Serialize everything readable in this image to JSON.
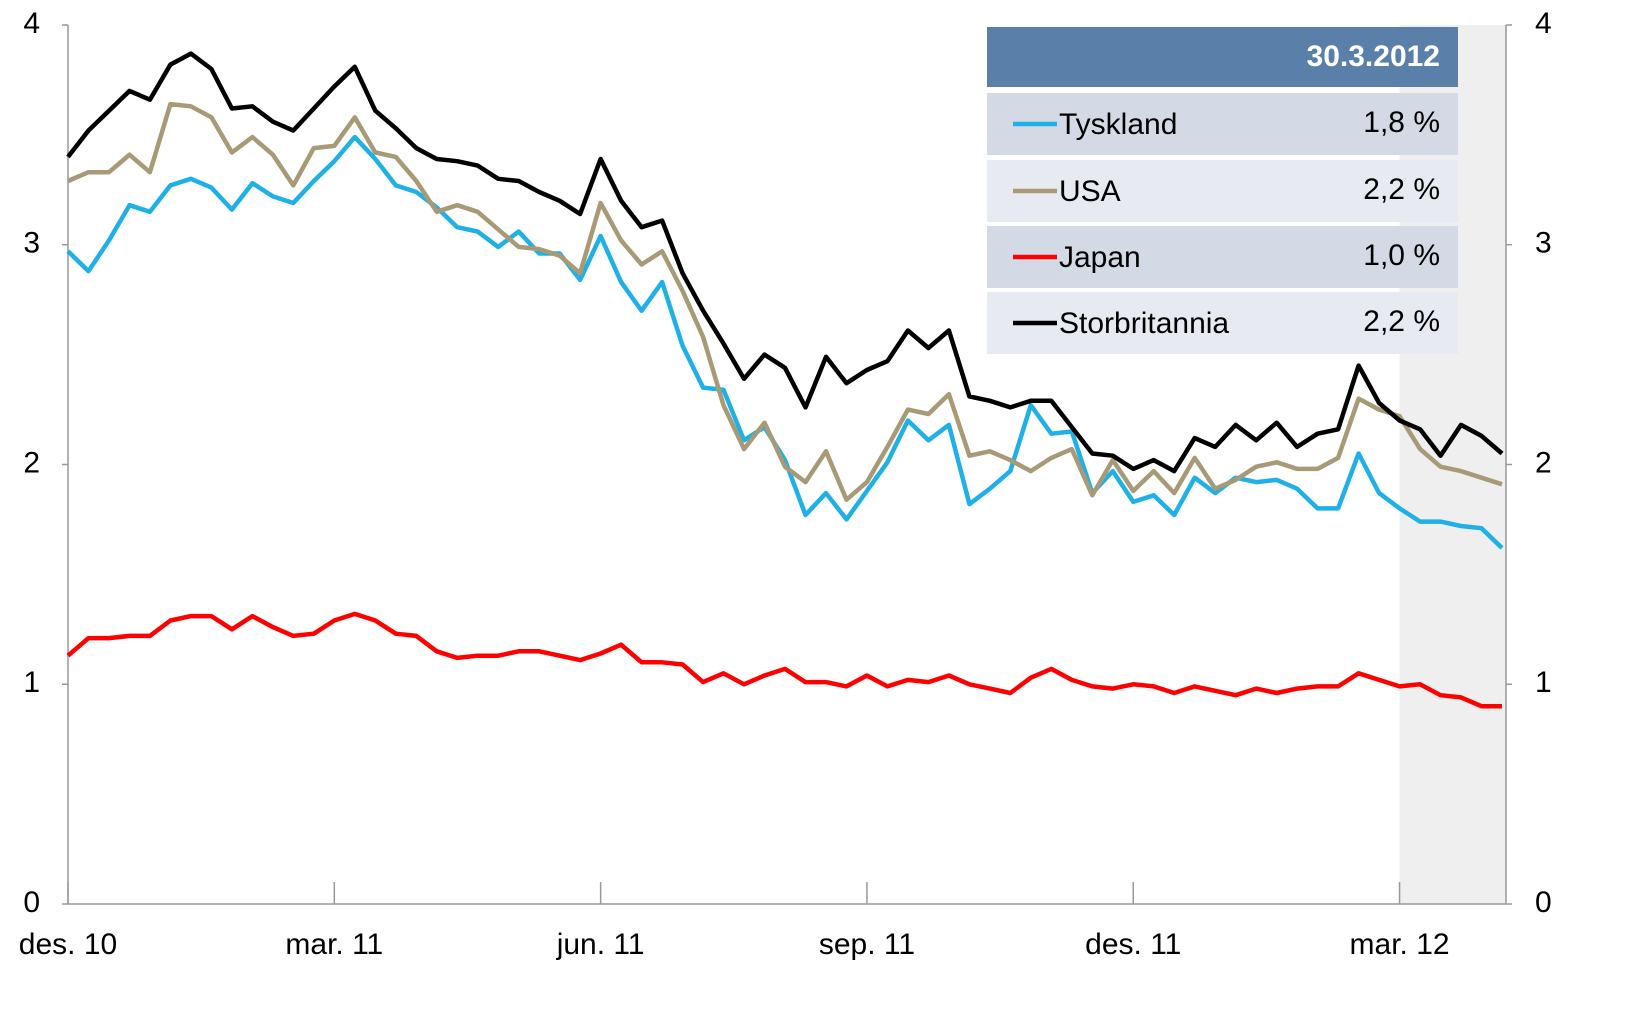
{
  "chart_data": {
    "type": "line",
    "categories": [
      "des. 10",
      null,
      null,
      null,
      null,
      null,
      null,
      null,
      null,
      null,
      null,
      null,
      null,
      "mar. 11",
      null,
      null,
      null,
      null,
      null,
      null,
      null,
      null,
      null,
      null,
      null,
      null,
      "jun. 11",
      null,
      null,
      null,
      null,
      null,
      null,
      null,
      null,
      null,
      null,
      null,
      null,
      "sep. 11",
      null,
      null,
      null,
      null,
      null,
      null,
      null,
      null,
      null,
      null,
      null,
      null,
      "des. 11",
      null,
      null,
      null,
      null,
      null,
      null,
      null,
      null,
      null,
      null,
      null,
      null,
      "mar. 12",
      null,
      null,
      null,
      null,
      null
    ],
    "series": [
      {
        "name": "Tyskland",
        "color": "#1fb0e6",
        "values": [
          2.97,
          2.88,
          3.02,
          3.18,
          3.15,
          3.27,
          3.3,
          3.26,
          3.16,
          3.28,
          3.22,
          3.19,
          3.29,
          3.38,
          3.49,
          3.39,
          3.27,
          3.24,
          3.17,
          3.08,
          3.06,
          2.99,
          3.06,
          2.96,
          2.96,
          2.84,
          3.04,
          2.83,
          2.7,
          2.83,
          2.54,
          2.35,
          2.34,
          2.11,
          2.17,
          2.02,
          1.77,
          1.87,
          1.75,
          1.88,
          2.01,
          2.2,
          2.11,
          2.18,
          1.82,
          1.89,
          1.97,
          2.27,
          2.14,
          2.15,
          1.87,
          1.97,
          1.83,
          1.86,
          1.77,
          1.94,
          1.87,
          1.94,
          1.92,
          1.93,
          1.89,
          1.8,
          1.8,
          2.05,
          1.87,
          1.8,
          1.74,
          1.74,
          1.72,
          1.71,
          1.62
        ]
      },
      {
        "name": "USA",
        "color": "#a89a76",
        "values": [
          3.29,
          3.33,
          3.33,
          3.41,
          3.33,
          3.64,
          3.63,
          3.58,
          3.42,
          3.49,
          3.41,
          3.27,
          3.44,
          3.45,
          3.58,
          3.42,
          3.4,
          3.29,
          3.15,
          3.18,
          3.15,
          3.07,
          2.99,
          2.98,
          2.95,
          2.87,
          3.19,
          3.02,
          2.91,
          2.97,
          2.79,
          2.58,
          2.27,
          2.07,
          2.19,
          1.99,
          1.92,
          2.06,
          1.84,
          1.92,
          2.08,
          2.25,
          2.23,
          2.32,
          2.04,
          2.06,
          2.02,
          1.97,
          2.03,
          2.07,
          1.86,
          2.02,
          1.88,
          1.97,
          1.87,
          2.03,
          1.89,
          1.93,
          1.99,
          2.01,
          1.98,
          1.98,
          2.03,
          2.3,
          2.25,
          2.22,
          2.07,
          1.99,
          1.97,
          1.94,
          1.91
        ]
      },
      {
        "name": "Japan",
        "color": "#ff0000",
        "values": [
          1.13,
          1.21,
          1.21,
          1.22,
          1.22,
          1.29,
          1.31,
          1.31,
          1.25,
          1.31,
          1.26,
          1.22,
          1.23,
          1.29,
          1.32,
          1.29,
          1.23,
          1.22,
          1.15,
          1.12,
          1.13,
          1.13,
          1.15,
          1.15,
          1.13,
          1.11,
          1.14,
          1.18,
          1.1,
          1.1,
          1.09,
          1.01,
          1.05,
          1.0,
          1.04,
          1.07,
          1.01,
          1.01,
          0.99,
          1.04,
          0.99,
          1.02,
          1.01,
          1.04,
          1.0,
          0.98,
          0.96,
          1.03,
          1.07,
          1.02,
          0.99,
          0.98,
          1.0,
          0.99,
          0.96,
          0.99,
          0.97,
          0.95,
          0.98,
          0.96,
          0.98,
          0.99,
          0.99,
          1.05,
          1.02,
          0.99,
          1.0,
          0.95,
          0.94,
          0.9,
          0.9
        ]
      },
      {
        "name": "Storbritannia",
        "color": "#000000",
        "values": [
          3.4,
          3.52,
          3.61,
          3.7,
          3.66,
          3.82,
          3.87,
          3.8,
          3.62,
          3.63,
          3.56,
          3.52,
          3.62,
          3.72,
          3.81,
          3.61,
          3.53,
          3.44,
          3.39,
          3.38,
          3.36,
          3.3,
          3.29,
          3.24,
          3.2,
          3.14,
          3.39,
          3.2,
          3.08,
          3.11,
          2.87,
          2.7,
          2.55,
          2.39,
          2.5,
          2.44,
          2.26,
          2.49,
          2.37,
          2.43,
          2.47,
          2.61,
          2.53,
          2.61,
          2.31,
          2.29,
          2.26,
          2.29,
          2.29,
          2.17,
          2.05,
          2.04,
          1.98,
          2.02,
          1.97,
          2.12,
          2.08,
          2.18,
          2.11,
          2.19,
          2.08,
          2.14,
          2.16,
          2.45,
          2.28,
          2.2,
          2.16,
          2.04,
          2.18,
          2.13,
          2.05
        ]
      }
    ],
    "ylim": [
      0,
      4
    ],
    "yticks": [
      0,
      1,
      2,
      3,
      4
    ],
    "y2lim": [
      0,
      4
    ],
    "y2ticks": [
      0,
      1,
      2,
      3,
      4
    ],
    "grid": false,
    "shade_from": 65,
    "table": {
      "header": "30.3.2012",
      "values": [
        1.8,
        2.2,
        1.0,
        2.2
      ],
      "value_labels": [
        "1,8 %",
        "2,2 %",
        "1,0 %",
        "2,2 %"
      ]
    }
  }
}
